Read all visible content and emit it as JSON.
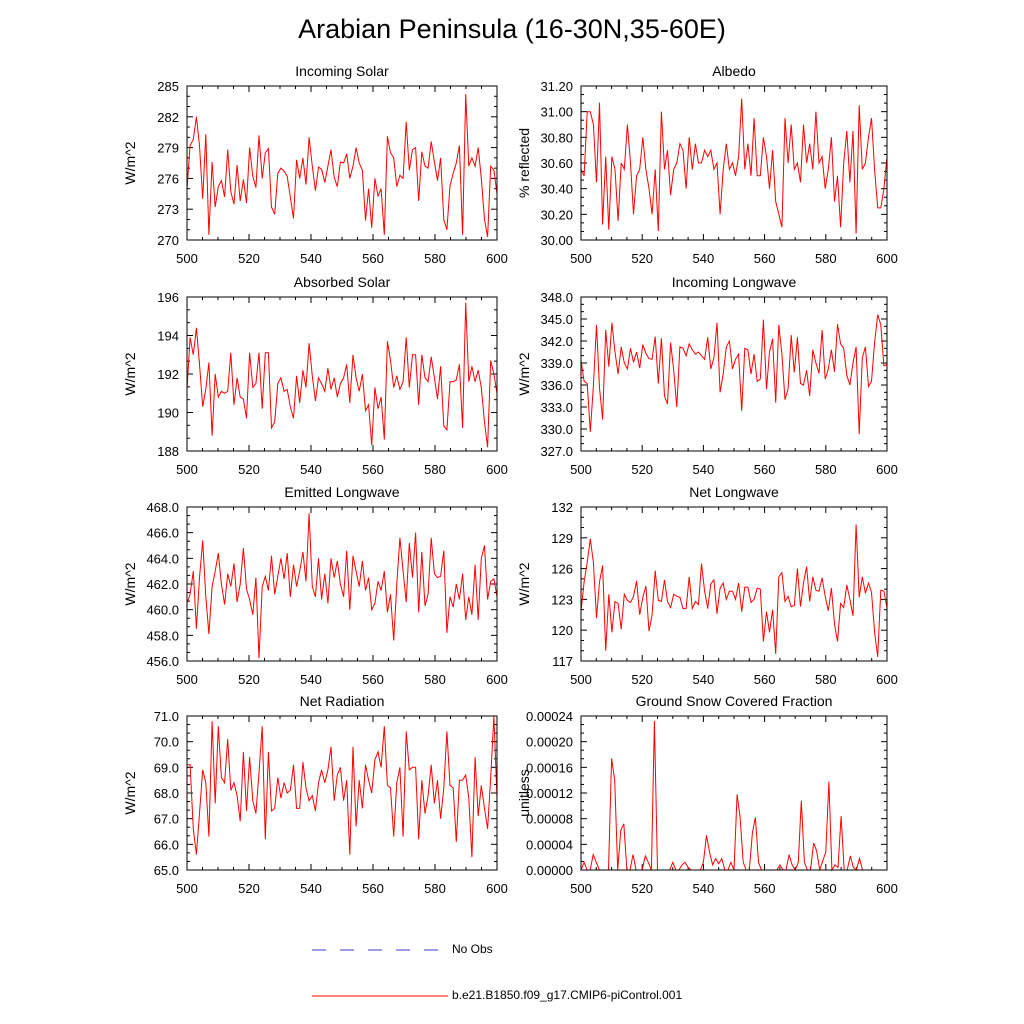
{
  "figure": {
    "title": "Arabian Peninsula (16-30N,35-60E)"
  },
  "legend": {
    "items": [
      {
        "label": "No Obs",
        "color": "#3b3bcc",
        "style": "dashed"
      },
      {
        "label": "b.e21.B1850.f09_g17.CMIP6-piControl.001",
        "color": "#ff0000",
        "style": "solid"
      }
    ]
  },
  "chart_data": [
    {
      "type": "line",
      "title": "Incoming Solar",
      "ylabel": "W/m^2",
      "xlim": [
        500,
        600
      ],
      "ylim": [
        270,
        285
      ],
      "xticks": [
        "500",
        "520",
        "540",
        "560",
        "580",
        "600"
      ],
      "yticks": [
        "270",
        "273",
        "276",
        "279",
        "282",
        "285"
      ],
      "series": [
        {
          "color": "#ff0000",
          "values": [
            275.0,
            279.2,
            279.8,
            282.0,
            279.2,
            274.0,
            280.3,
            270.5,
            277.6,
            273.2,
            275.2,
            275.8,
            274.2,
            278.8,
            274.7,
            273.5,
            277.3,
            273.8,
            275.9,
            273.6,
            279.0,
            276.2,
            275.1,
            280.2,
            276.0,
            278.5,
            278.9,
            273.2,
            272.5,
            276.5,
            277.0,
            276.7,
            276.2,
            274.2,
            272.1,
            277.8,
            276.0,
            278.0,
            275.4,
            280.0,
            277.2,
            274.8,
            277.1,
            276.9,
            275.6,
            277.2,
            278.8,
            276.1,
            275.2,
            277.6,
            277.5,
            278.4,
            276.0,
            277.2,
            279.0,
            277.5,
            276.8,
            271.9,
            275.0,
            271.2,
            276.0,
            274.3,
            275.0,
            270.5,
            280.1,
            278.5,
            278.0,
            275.2,
            276.3,
            276.0,
            281.5,
            276.8,
            278.8,
            279.0,
            273.8,
            278.6,
            277.2,
            277.0,
            279.6,
            277.6,
            275.8,
            278.0,
            272.0,
            271.0,
            275.3,
            276.5,
            277.5,
            279.2,
            270.5,
            284.2,
            277.2,
            278.0,
            277.2,
            279.0,
            276.0,
            272.0,
            270.3,
            277.2,
            276.8,
            274.5
          ]
        }
      ]
    },
    {
      "type": "line",
      "title": "Albedo",
      "ylabel": "% reflected",
      "xlim": [
        500,
        600
      ],
      "ylim": [
        30.0,
        31.2
      ],
      "xticks": [
        "500",
        "520",
        "540",
        "560",
        "580",
        "600"
      ],
      "yticks": [
        "30.00",
        "30.20",
        "30.40",
        "30.60",
        "30.80",
        "31.00",
        "31.20"
      ],
      "series": [
        {
          "color": "#ff0000",
          "values": [
            30.55,
            30.5,
            31.0,
            31.0,
            30.9,
            30.45,
            31.07,
            30.12,
            30.65,
            30.08,
            30.65,
            30.55,
            30.15,
            30.6,
            30.55,
            30.9,
            30.6,
            30.2,
            30.5,
            30.55,
            30.8,
            30.55,
            30.4,
            30.2,
            30.55,
            30.07,
            31.0,
            30.55,
            30.7,
            30.35,
            30.55,
            30.6,
            30.75,
            30.7,
            30.4,
            30.8,
            30.55,
            30.75,
            30.6,
            30.6,
            30.7,
            30.65,
            30.7,
            30.55,
            30.6,
            30.2,
            30.55,
            30.75,
            30.55,
            30.6,
            30.5,
            30.65,
            31.1,
            30.55,
            30.75,
            30.5,
            30.95,
            30.5,
            30.5,
            30.8,
            30.65,
            30.4,
            30.7,
            30.3,
            30.2,
            30.1,
            30.95,
            30.6,
            30.9,
            30.55,
            30.6,
            30.45,
            30.9,
            30.6,
            30.75,
            30.55,
            31.0,
            30.6,
            30.65,
            30.4,
            30.55,
            30.8,
            30.3,
            30.5,
            30.1,
            30.6,
            30.85,
            30.45,
            30.85,
            30.05,
            31.05,
            30.55,
            30.6,
            30.8,
            30.95,
            30.55,
            30.25,
            30.25,
            30.4,
            30.65
          ]
        }
      ]
    },
    {
      "type": "line",
      "title": "Absorbed Solar",
      "ylabel": "W/m^2",
      "xlim": [
        500,
        600
      ],
      "ylim": [
        188,
        196
      ],
      "xticks": [
        "500",
        "520",
        "540",
        "560",
        "580",
        "600"
      ],
      "yticks": [
        "188",
        "190",
        "192",
        "194",
        "196"
      ],
      "series": [
        {
          "color": "#ff0000",
          "values": [
            191.2,
            193.9,
            193.0,
            194.4,
            192.5,
            190.3,
            191.2,
            192.6,
            188.8,
            192.0,
            190.8,
            191.1,
            191.0,
            191.1,
            193.1,
            190.4,
            191.8,
            190.8,
            190.7,
            189.7,
            193.1,
            191.3,
            191.5,
            193.1,
            190.2,
            193.1,
            193.1,
            189.2,
            189.5,
            191.5,
            191.8,
            191.1,
            191.2,
            190.3,
            189.7,
            191.9,
            190.5,
            192.2,
            191.3,
            193.6,
            191.9,
            190.6,
            191.8,
            191.5,
            191.1,
            192.3,
            191.2,
            191.8,
            190.8,
            191.5,
            191.8,
            192.5,
            190.5,
            193.0,
            191.8,
            191.1,
            192.0,
            190.1,
            190.4,
            188.3,
            191.3,
            190.2,
            190.8,
            188.6,
            193.7,
            192.7,
            191.3,
            191.9,
            191.2,
            191.6,
            193.9,
            191.3,
            193.0,
            193.0,
            190.4,
            193.0,
            191.8,
            191.6,
            192.9,
            191.8,
            190.7,
            192.4,
            189.3,
            189.1,
            191.6,
            191.6,
            191.7,
            192.5,
            189.2,
            195.7,
            191.6,
            192.4,
            191.6,
            192.2,
            191.3,
            189.5,
            188.2,
            192.7,
            192.0,
            191.0
          ]
        }
      ]
    },
    {
      "type": "line",
      "title": "Incoming Longwave",
      "ylabel": "W/m^2",
      "xlim": [
        500,
        600
      ],
      "ylim": [
        327.0,
        348.0
      ],
      "xticks": [
        "500",
        "520",
        "540",
        "560",
        "580",
        "600"
      ],
      "yticks": [
        "327.0",
        "330.0",
        "333.0",
        "336.0",
        "339.0",
        "342.0",
        "345.0",
        "348.0"
      ],
      "series": [
        {
          "color": "#ff0000",
          "values": [
            339.4,
            336.5,
            336.2,
            329.6,
            335.9,
            344.2,
            335.6,
            331.3,
            343.5,
            338.5,
            344.5,
            340.5,
            337.5,
            341.2,
            339.0,
            338.2,
            341.0,
            339.1,
            340.5,
            338.3,
            341.5,
            340.3,
            339.6,
            339.5,
            342.6,
            336.2,
            342.4,
            334.5,
            333.4,
            341.8,
            338.0,
            333.0,
            341.2,
            341.0,
            340.0,
            341.6,
            340.8,
            340.2,
            340.5,
            340.0,
            339.5,
            342.5,
            338.2,
            339.7,
            344.5,
            335.0,
            337.5,
            341.2,
            342.0,
            338.2,
            339.5,
            340.2,
            332.5,
            341.0,
            340.8,
            337.5,
            340.2,
            336.5,
            336.8,
            344.9,
            335.4,
            340.5,
            342.3,
            333.6,
            344.2,
            340.2,
            334.0,
            335.5,
            342.8,
            337.7,
            342.5,
            336.2,
            336.0,
            338.0,
            334.5,
            340.8,
            339.0,
            337.6,
            343.5,
            336.8,
            338.2,
            340.8,
            337.8,
            344.3,
            341.6,
            341.0,
            337.3,
            336.0,
            339.0,
            341.2,
            329.3,
            339.7,
            341.2,
            335.8,
            336.5,
            341.8,
            345.6,
            344.2,
            338.6,
            338.8
          ]
        }
      ]
    },
    {
      "type": "line",
      "title": "Emitted Longwave",
      "ylabel": "W/m^2",
      "xlim": [
        500,
        600
      ],
      "ylim": [
        456.0,
        468.0
      ],
      "xticks": [
        "500",
        "520",
        "540",
        "560",
        "580",
        "600"
      ],
      "yticks": [
        "456.0",
        "458.0",
        "460.0",
        "462.0",
        "464.0",
        "466.0",
        "468.0"
      ],
      "series": [
        {
          "color": "#ff0000",
          "values": [
            460.5,
            461.2,
            463.0,
            458.5,
            462.5,
            465.4,
            461.0,
            458.1,
            461.8,
            463.0,
            464.4,
            462.0,
            460.4,
            462.8,
            461.8,
            463.6,
            460.6,
            462.0,
            464.8,
            461.6,
            460.8,
            459.6,
            462.5,
            456.2,
            461.8,
            462.6,
            461.5,
            464.2,
            461.2,
            462.6,
            464.0,
            462.4,
            464.4,
            461.0,
            463.5,
            461.8,
            463.0,
            464.5,
            462.2,
            467.5,
            461.8,
            461.0,
            464.0,
            460.8,
            462.8,
            460.5,
            464.0,
            462.5,
            463.8,
            462.0,
            461.0,
            464.6,
            460.0,
            464.2,
            463.0,
            461.8,
            463.8,
            461.5,
            462.5,
            460.0,
            460.5,
            462.2,
            461.5,
            463.0,
            459.8,
            461.2,
            457.6,
            462.0,
            465.6,
            463.0,
            460.6,
            465.2,
            462.5,
            466.0,
            459.8,
            464.5,
            460.3,
            461.2,
            465.6,
            462.8,
            462.5,
            462.6,
            464.6,
            458.2,
            461.0,
            460.2,
            462.0,
            460.8,
            462.8,
            459.2,
            461.0,
            459.6,
            463.5,
            459.2,
            464.0,
            465.0,
            460.8,
            462.2,
            462.4,
            461.0
          ]
        }
      ]
    },
    {
      "type": "line",
      "title": "Net Longwave",
      "ylabel": "W/m^2",
      "xlim": [
        500,
        600
      ],
      "ylim": [
        117,
        132
      ],
      "xticks": [
        "500",
        "520",
        "540",
        "560",
        "580",
        "600"
      ],
      "yticks": [
        "117",
        "120",
        "123",
        "126",
        "129",
        "132"
      ],
      "series": [
        {
          "color": "#ff0000",
          "values": [
            121.8,
            124.7,
            126.6,
            128.9,
            126.6,
            121.2,
            124.7,
            126.3,
            118.0,
            123.5,
            119.8,
            122.8,
            122.6,
            120.1,
            123.5,
            122.9,
            122.7,
            123.3,
            124.8,
            121.5,
            123.2,
            124.3,
            119.9,
            121.5,
            125.8,
            122.9,
            122.8,
            124.9,
            122.8,
            122.2,
            123.5,
            123.3,
            123.2,
            122.1,
            122.1,
            125.2,
            122.1,
            122.8,
            122.5,
            126.5,
            123.8,
            122.1,
            124.5,
            124.9,
            121.6,
            124.1,
            124.6,
            123.0,
            123.8,
            123.8,
            123.0,
            124.6,
            121.8,
            124.2,
            124.2,
            122.7,
            123.0,
            124.1,
            124.0,
            118.9,
            121.8,
            119.8,
            122.0,
            117.7,
            125.2,
            125.6,
            122.8,
            123.3,
            122.3,
            122.4,
            126.0,
            122.3,
            124.6,
            126.2,
            122.8,
            125.2,
            123.9,
            123.8,
            125.1,
            123.3,
            121.9,
            124.1,
            120.6,
            118.9,
            122.6,
            122.2,
            124.4,
            123.0,
            121.4,
            130.3,
            123.2,
            125.2,
            123.6,
            124.6,
            123.7,
            119.8,
            117.4,
            123.9,
            123.8,
            122.2
          ]
        }
      ]
    },
    {
      "type": "line",
      "title": "Net Radiation",
      "ylabel": "W/m^2",
      "xlim": [
        500,
        600
      ],
      "ylim": [
        65.0,
        71.0
      ],
      "xticks": [
        "500",
        "520",
        "540",
        "560",
        "580",
        "600"
      ],
      "yticks": [
        "65.0",
        "66.0",
        "67.0",
        "68.0",
        "69.0",
        "70.0",
        "71.0"
      ],
      "series": [
        {
          "color": "#ff0000",
          "values": [
            69.1,
            69.1,
            66.6,
            65.6,
            67.2,
            68.9,
            68.4,
            66.3,
            70.8,
            67.6,
            70.6,
            68.6,
            68.4,
            70.1,
            68.1,
            68.4,
            67.9,
            66.9,
            69.6,
            67.3,
            69.4,
            67.7,
            67.2,
            68.8,
            70.6,
            66.2,
            69.6,
            67.3,
            67.4,
            68.6,
            67.8,
            68.4,
            68.0,
            68.1,
            69.1,
            67.4,
            67.4,
            69.2,
            68.2,
            67.7,
            67.9,
            67.3,
            68.4,
            68.9,
            68.4,
            68.9,
            69.8,
            67.7,
            68.7,
            69.0,
            67.7,
            68.5,
            65.6,
            69.8,
            66.7,
            68.5,
            67.4,
            69.1,
            68.5,
            68.0,
            69.3,
            69.6,
            69.0,
            70.6,
            68.3,
            68.2,
            66.3,
            68.4,
            69.0,
            66.3,
            70.4,
            68.9,
            69.0,
            69.0,
            66.2,
            68.5,
            67.2,
            67.9,
            69.1,
            67.6,
            68.5,
            67.0,
            68.2,
            70.4,
            68.3,
            68.2,
            66.1,
            68.5,
            68.5,
            68.7,
            67.8,
            65.5,
            69.4,
            67.1,
            68.3,
            67.4,
            66.6,
            68.6,
            71.0,
            67.8
          ]
        }
      ]
    },
    {
      "type": "line",
      "title": "Ground Snow Covered Fraction",
      "ylabel": "unitless",
      "xlim": [
        500,
        600
      ],
      "ylim": [
        0,
        0.00024
      ],
      "xticks": [
        "500",
        "520",
        "540",
        "560",
        "580",
        "600"
      ],
      "yticks": [
        "0.00000",
        "0.00004",
        "0.00008",
        "0.00012",
        "0.00016",
        "0.00020",
        "0.00024"
      ],
      "series": [
        {
          "color": "#ff0000",
          "values": [
            0,
            1.2e-05,
            0,
            0,
            2.4e-05,
            1.2e-05,
            0,
            0,
            0,
            0,
            0.000174,
            0.00014,
            0,
            6.2e-05,
            7.2e-05,
            0,
            0,
            2.4e-05,
            0,
            0,
            0,
            2.2e-05,
            1.2e-05,
            0,
            0.000232,
            0,
            0,
            0,
            0,
            0,
            1.2e-05,
            0,
            0,
            8e-06,
            1.2e-05,
            4e-06,
            0,
            0,
            0,
            0,
            1.2e-05,
            5.4e-05,
            2.8e-05,
            8e-06,
            1.8e-05,
            1e-05,
            1.8e-05,
            0,
            0,
            1.2e-05,
            0,
            0.000118,
            8.2e-05,
            1.2e-05,
            0,
            0,
            5.8e-05,
            8.2e-05,
            1.2e-05,
            0,
            0,
            0,
            0,
            0,
            0,
            8e-06,
            0,
            0,
            2.4e-05,
            8e-06,
            0,
            1.2e-05,
            0.000108,
            1.2e-05,
            0,
            0,
            4.2e-05,
            3e-05,
            0,
            1.4e-05,
            2.8e-05,
            0.000138,
            0,
            8e-06,
            4e-06,
            8.4e-05,
            0,
            0,
            2.2e-05,
            4e-06,
            0,
            1.8e-05,
            0,
            0,
            0,
            0,
            0,
            0,
            0,
            0,
            0
          ]
        }
      ]
    }
  ]
}
